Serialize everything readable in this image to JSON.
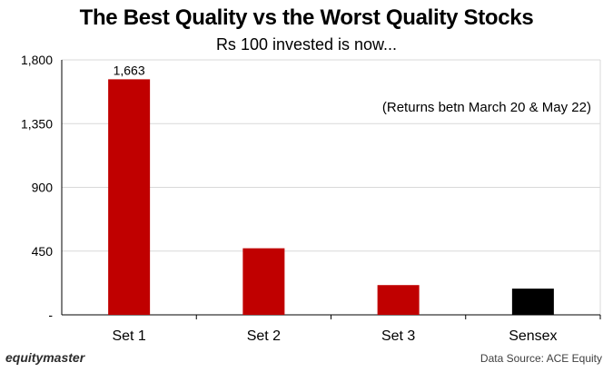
{
  "chart_data": {
    "type": "bar",
    "title": "The Best Quality vs the Worst Quality Stocks",
    "subtitle": "Rs 100 invested is now...",
    "annotation": "(Returns betn March 20 & May 22)",
    "categories": [
      "Set 1",
      "Set 2",
      "Set 3",
      "Sensex"
    ],
    "values": [
      1663,
      470,
      210,
      185
    ],
    "colors": [
      "#c00000",
      "#c00000",
      "#c00000",
      "#000000"
    ],
    "data_labels": [
      "1,663",
      "",
      "",
      ""
    ],
    "ylim": [
      0,
      1800
    ],
    "yticks": [
      0,
      450,
      900,
      1350,
      1800
    ],
    "ytick_labels": [
      "-",
      "450",
      "900",
      "1,350",
      "1,800"
    ],
    "xlabel": "",
    "ylabel": "",
    "grid": true
  },
  "footer": {
    "brand": "equitymaster",
    "source": "Data Source: ACE Equity"
  }
}
